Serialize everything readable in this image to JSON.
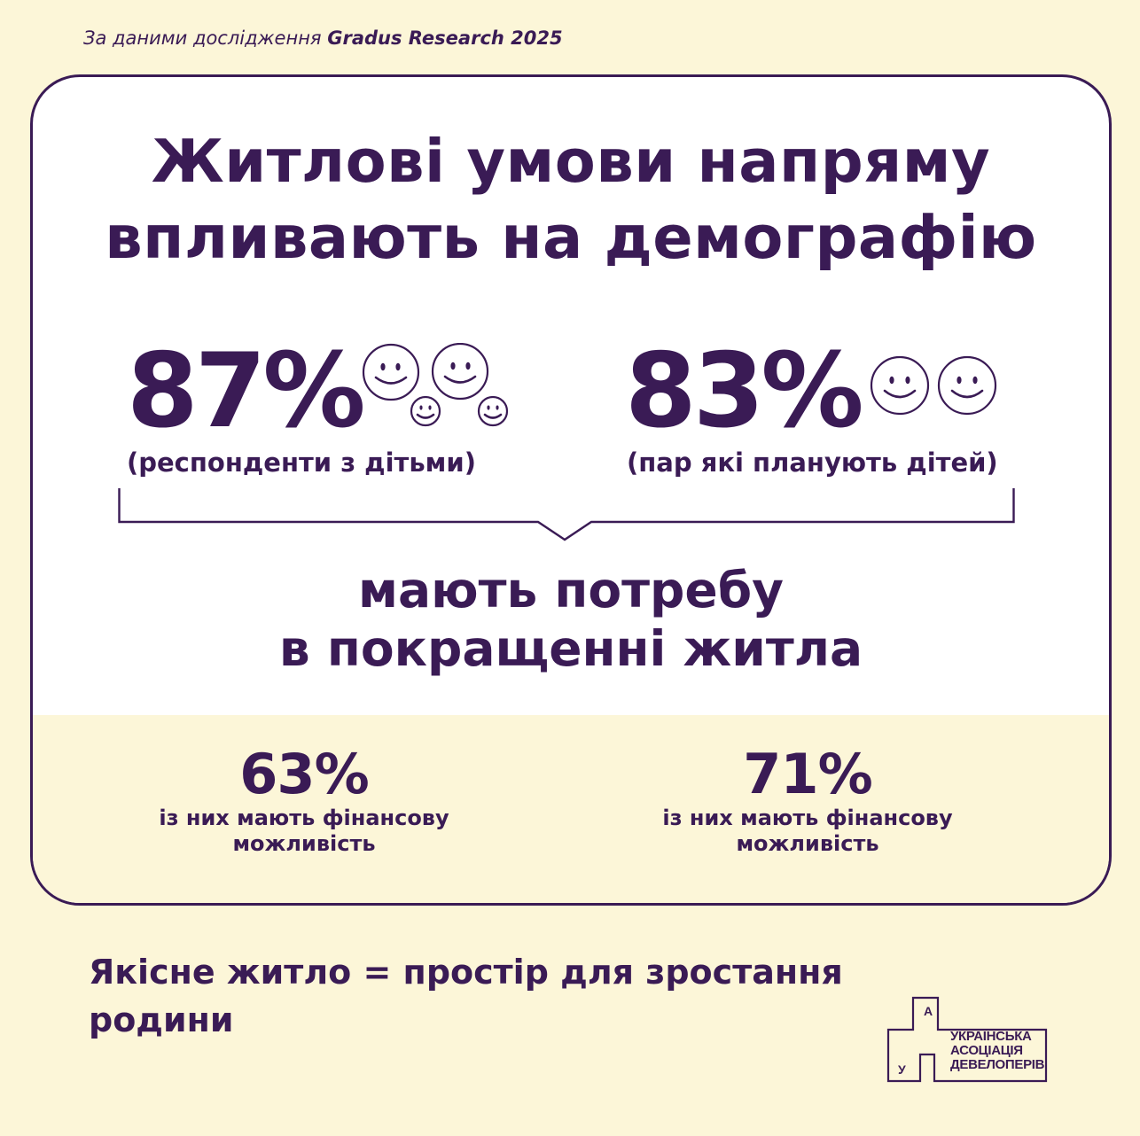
{
  "source": {
    "prefix": "За даними дослідження ",
    "brand": "Gradus Research 2025"
  },
  "title": {
    "line1": "Житлові умови напряму",
    "line2": "впливають на демографію"
  },
  "stats": [
    {
      "value": "87%",
      "label": "(респонденти з дітьми)",
      "icon": "smiley-cluster-icon"
    },
    {
      "value": "83%",
      "label": "(пар які планують дітей)",
      "icon": "two-smileys-icon"
    }
  ],
  "need": {
    "line1": "мають потребу",
    "line2": "в покращенні житла"
  },
  "finance": [
    {
      "value": "63%",
      "line1": "із них мають фінансову",
      "line2": "можливість"
    },
    {
      "value": "71%",
      "line1": "із них мають фінансову",
      "line2": "можливість"
    }
  ],
  "tagline": {
    "line1": "Якісне житло = простір для зростання",
    "line2": "родини"
  },
  "logo": {
    "letter_top": "А",
    "letter_bottom": "У",
    "line1": "УКРАЇНСЬКА",
    "line2": "АСОЦІАЦІЯ",
    "line3": "ДЕВЕЛОПЕРІВ"
  },
  "colors": {
    "primary": "#3a1b55",
    "background": "#fcf6d8",
    "card": "#ffffff"
  }
}
